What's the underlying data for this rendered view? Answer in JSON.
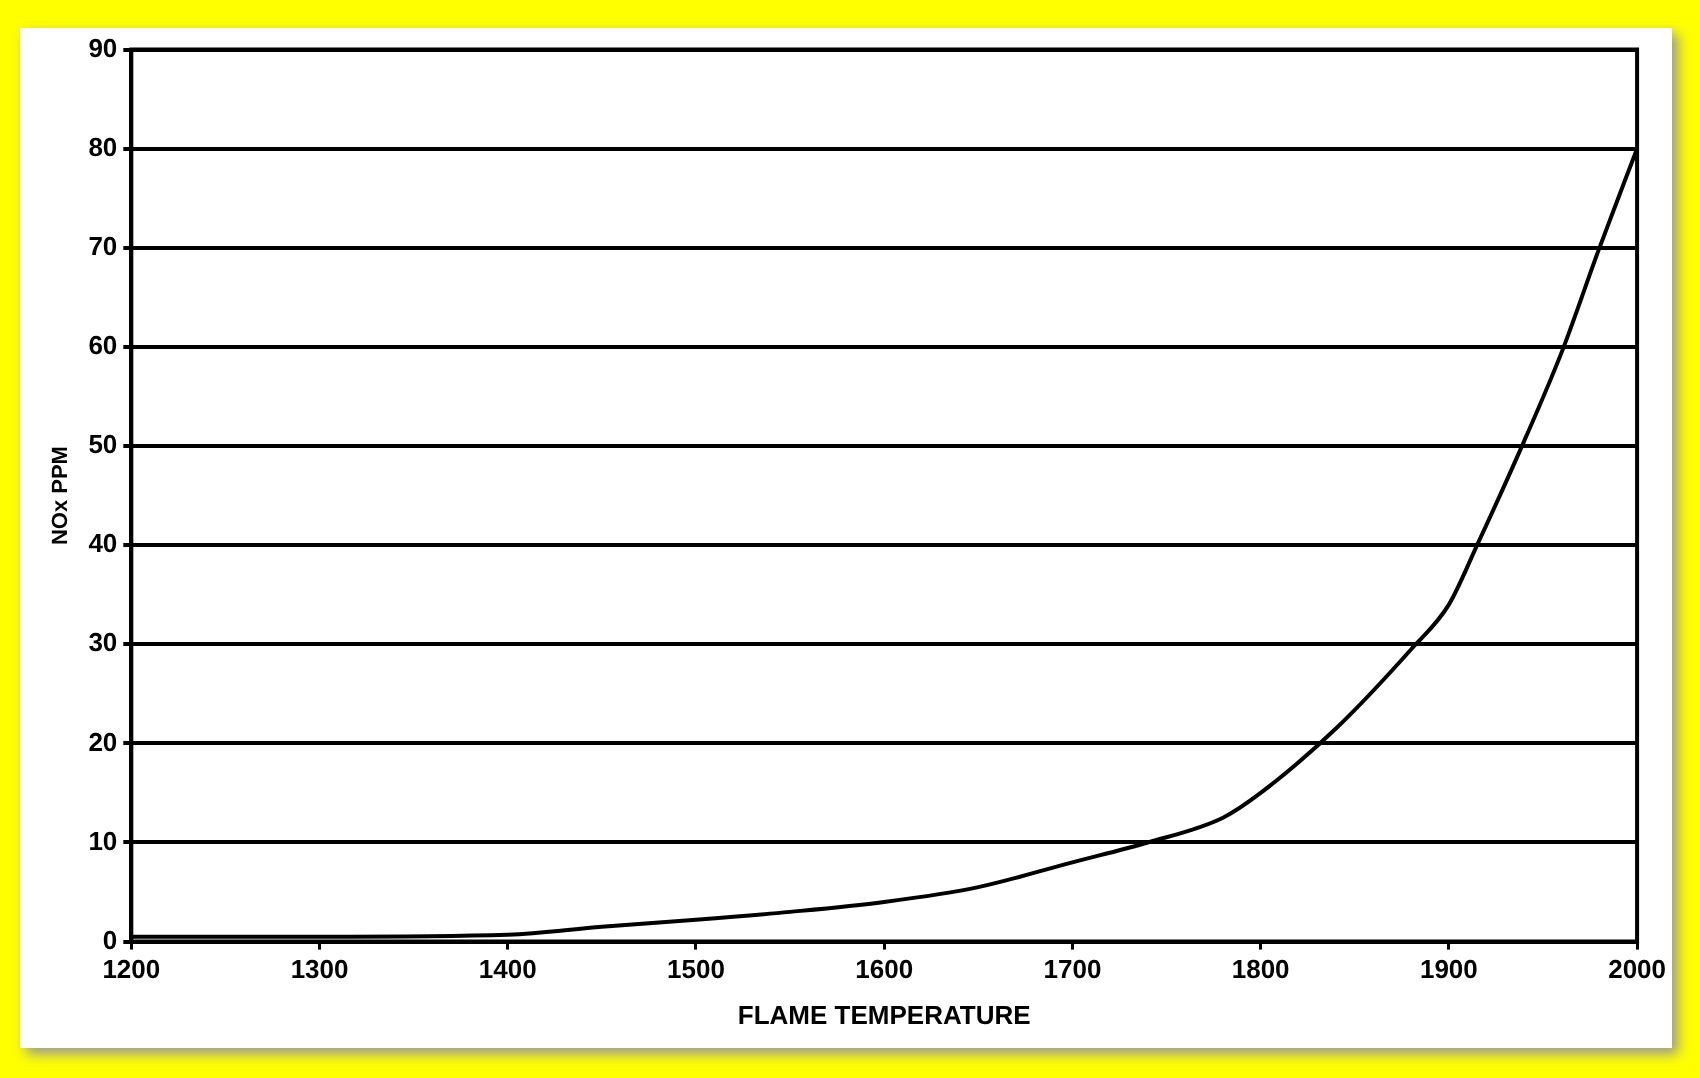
{
  "chart_data": {
    "type": "line",
    "xlabel": "FLAME TEMPERATURE",
    "ylabel": "NOx PPM",
    "x": [
      1200,
      1300,
      1400,
      1450,
      1500,
      1550,
      1600,
      1650,
      1700,
      1740,
      1780,
      1800,
      1840,
      1880,
      1900,
      1915,
      1940,
      1960,
      1980,
      2000
    ],
    "series": [
      {
        "color": "#000000",
        "values": [
          0.5,
          0.5,
          0.7,
          1.5,
          2.2,
          3,
          4,
          5.5,
          8,
          10,
          12.5,
          15,
          21.5,
          29.5,
          34,
          40,
          50.5,
          59.5,
          70,
          80
        ]
      }
    ],
    "xlim": [
      1200,
      2000
    ],
    "xticks": [
      1200,
      1300,
      1400,
      1500,
      1600,
      1700,
      1800,
      1900,
      2000
    ],
    "ylim": [
      0,
      90
    ],
    "yticks": [
      0,
      10,
      20,
      30,
      40,
      50,
      60,
      70,
      80,
      90
    ],
    "grid": "y",
    "legend": false,
    "marker": "none",
    "line_style": "solid"
  }
}
